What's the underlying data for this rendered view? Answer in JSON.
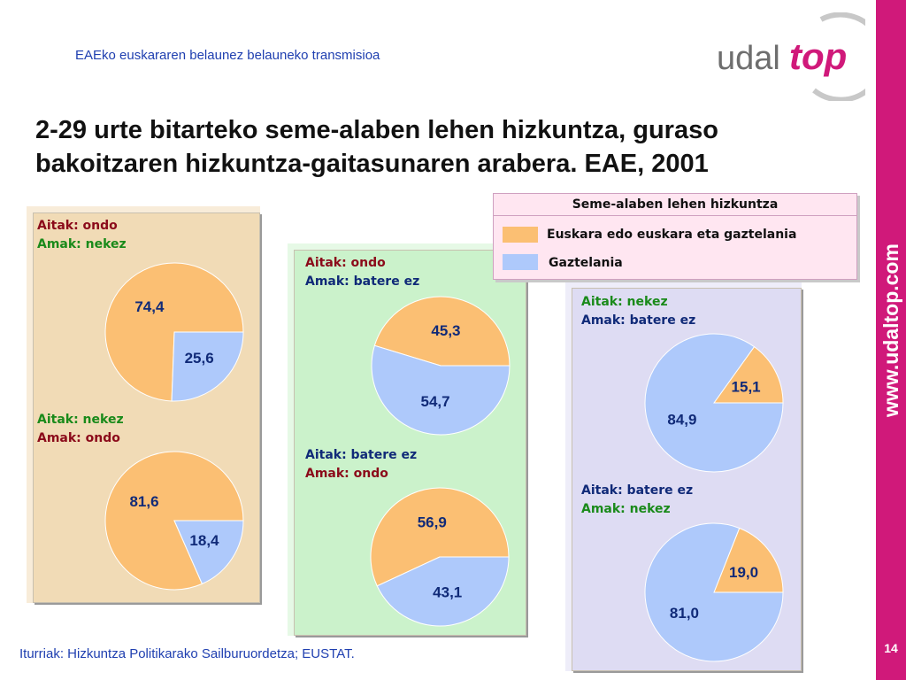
{
  "header": {
    "subtitle": "EAEko euskararen belaunez belauneko transmisioa"
  },
  "title": {
    "line1": "2-29 urte bitarteko seme-alaben lehen hizkuntza, guraso",
    "line2": "bakoitzaren hizkuntza-gaitasunaren arabera. EAE, 2001"
  },
  "logo": {
    "part1": "udal",
    "part2": "top"
  },
  "sidebar": {
    "url": "www.udaltop.com",
    "page_number": "14"
  },
  "source": "Iturriak: Hizkuntza Politikarako Sailburuordetza; EUSTAT.",
  "colors": {
    "euskara": "#fbbf73",
    "gaztelania": "#aec9fb",
    "panel1": "#f1dbb6",
    "panel2": "#cbf2cb",
    "panel3": "#dedcf3",
    "sidebar": "#d0197a"
  },
  "legend": {
    "title": "Seme-alaben lehen hizkuntza",
    "items": [
      {
        "label": "Euskara edo euskara eta gaztelania",
        "color": "#fbbf73"
      },
      {
        "label": "Gaztelania",
        "color": "#aec9fb"
      }
    ]
  },
  "chart_data": [
    {
      "type": "pie",
      "title_line1": "Aitak: ondo",
      "title_line2": "Amak: nekez",
      "labels": [
        "Euskara edo euskara eta gaztelania",
        "Gaztelania"
      ],
      "values": [
        74.4,
        25.6
      ],
      "value_labels": [
        "74,4",
        "25,6"
      ]
    },
    {
      "type": "pie",
      "title_line1": "Aitak: nekez",
      "title_line2": "Amak: ondo",
      "labels": [
        "Euskara edo euskara eta gaztelania",
        "Gaztelania"
      ],
      "values": [
        81.6,
        18.4
      ],
      "value_labels": [
        "81,6",
        "18,4"
      ]
    },
    {
      "type": "pie",
      "title_line1": "Aitak: ondo",
      "title_line2": "Amak: batere ez",
      "labels": [
        "Euskara edo euskara eta gaztelania",
        "Gaztelania"
      ],
      "values": [
        45.3,
        54.7
      ],
      "value_labels": [
        "45,3",
        "54,7"
      ]
    },
    {
      "type": "pie",
      "title_line1": "Aitak: batere ez",
      "title_line2": "Amak: ondo",
      "labels": [
        "Euskara edo euskara eta gaztelania",
        "Gaztelania"
      ],
      "values": [
        56.9,
        43.1
      ],
      "value_labels": [
        "56,9",
        "43,1"
      ]
    },
    {
      "type": "pie",
      "title_line1": "Aitak: nekez",
      "title_line2": "Amak: batere ez",
      "labels": [
        "Euskara edo euskara eta gaztelania",
        "Gaztelania"
      ],
      "values": [
        15.1,
        84.9
      ],
      "value_labels": [
        "15,1",
        "84,9"
      ]
    },
    {
      "type": "pie",
      "title_line1": "Aitak: batere ez",
      "title_line2": "Amak: nekez",
      "labels": [
        "Euskara edo euskara eta gaztelania",
        "Gaztelania"
      ],
      "values": [
        19.0,
        81.0
      ],
      "value_labels": [
        "19,0",
        "81,0"
      ]
    }
  ]
}
